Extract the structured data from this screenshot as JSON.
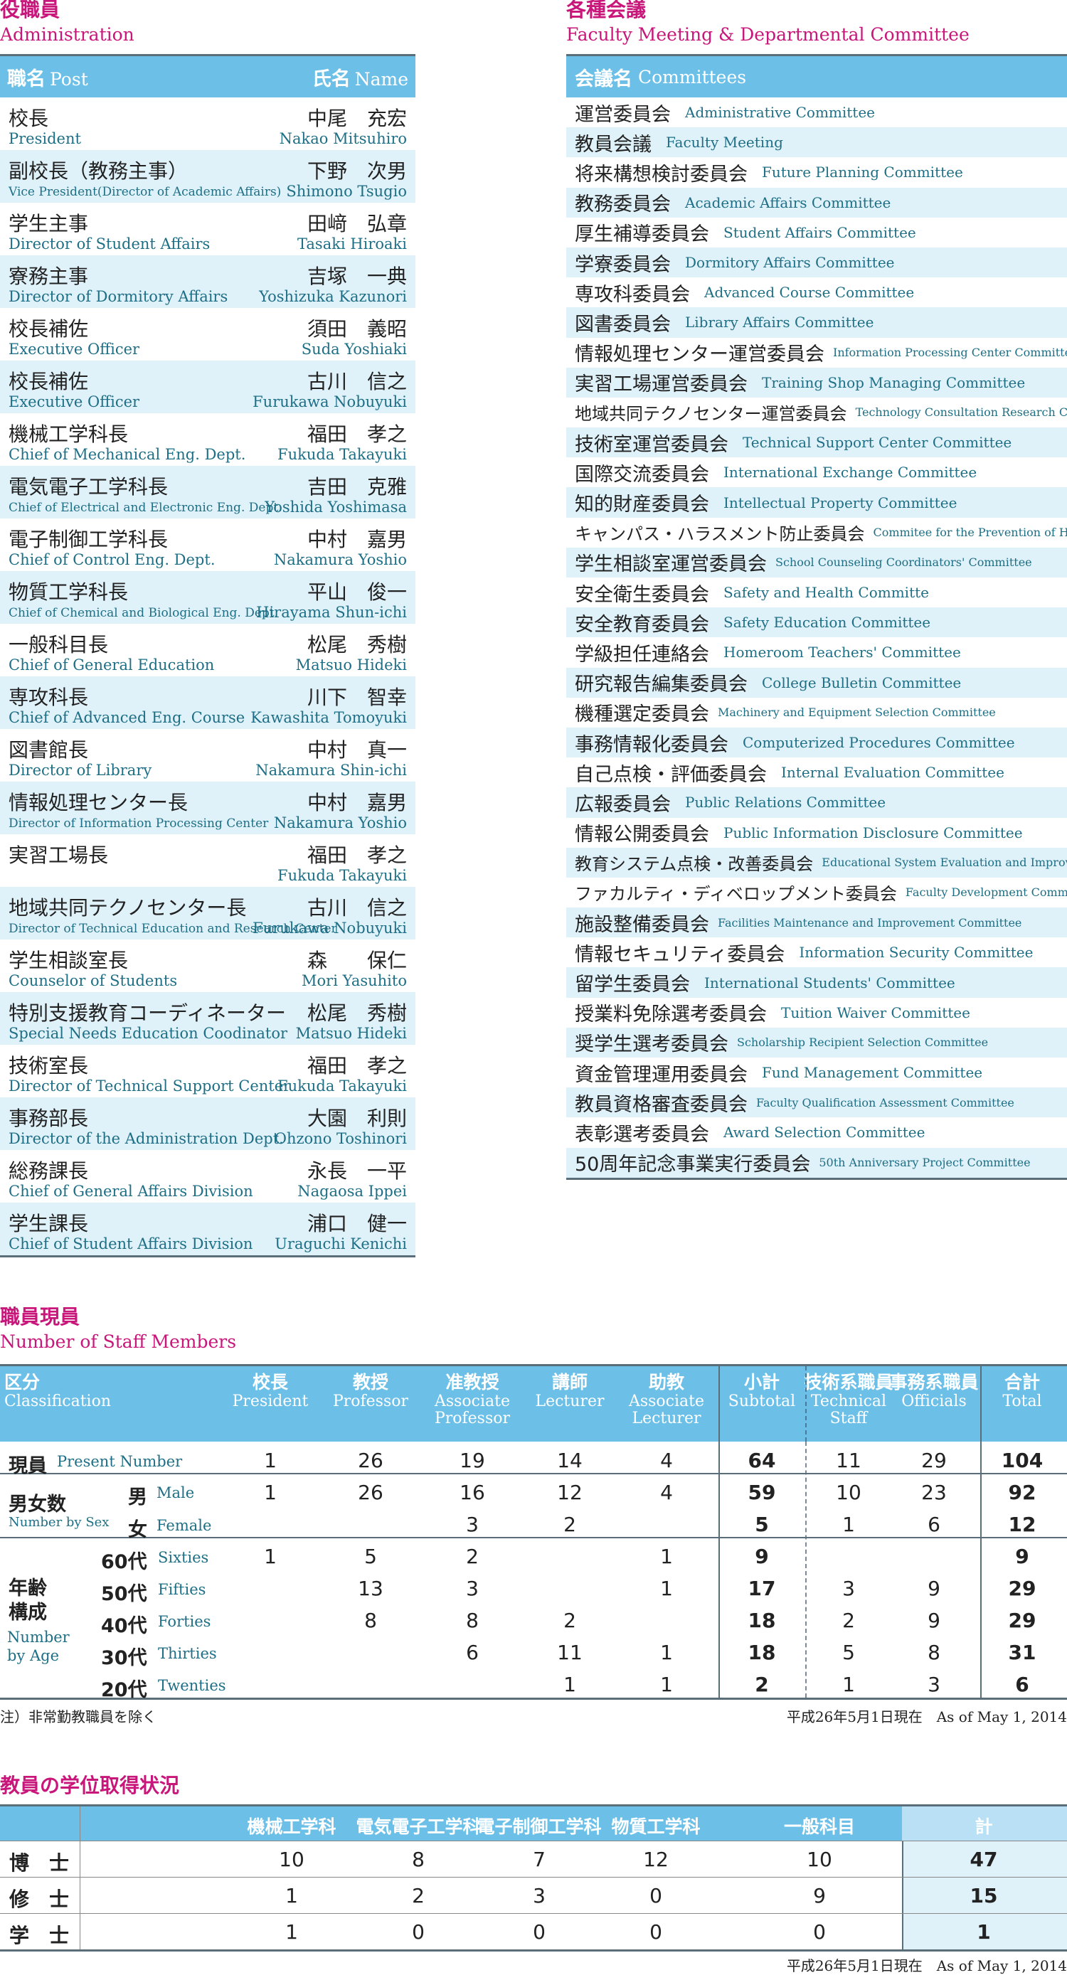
{
  "admin": {
    "title_jp": "役職員",
    "title_en": "Administration",
    "head_post_jp": "職名",
    "head_post_en": "Post",
    "head_name_jp": "氏名",
    "head_name_en": "Name",
    "rows": [
      {
        "post_jp": "校長",
        "post_en": "President",
        "name_jp": "中尾　充宏",
        "name_en": "Nakao Mitsuhiro"
      },
      {
        "post_jp": "副校長（教務主事）",
        "post_en": "Vice President(Director of Academic Affairs)",
        "name_jp": "下野　次男",
        "name_en": "Shimono Tsugio"
      },
      {
        "post_jp": "学生主事",
        "post_en": "Director of Student Affairs",
        "name_jp": "田﨑　弘章",
        "name_en": "Tasaki Hiroaki"
      },
      {
        "post_jp": "寮務主事",
        "post_en": "Director of Dormitory Affairs",
        "name_jp": "吉塚　一典",
        "name_en": "Yoshizuka Kazunori"
      },
      {
        "post_jp": "校長補佐",
        "post_en": "Executive Officer",
        "name_jp": "須田　義昭",
        "name_en": "Suda Yoshiaki"
      },
      {
        "post_jp": "校長補佐",
        "post_en": "Executive Officer",
        "name_jp": "古川　信之",
        "name_en": "Furukawa Nobuyuki"
      },
      {
        "post_jp": "機械工学科長",
        "post_en": "Chief of Mechanical Eng. Dept.",
        "name_jp": "福田　孝之",
        "name_en": "Fukuda Takayuki"
      },
      {
        "post_jp": "電気電子工学科長",
        "post_en": "Chief of Electrical and Electronic Eng. Dept.",
        "name_jp": "吉田　克雅",
        "name_en": "Yoshida Yoshimasa"
      },
      {
        "post_jp": "電子制御工学科長",
        "post_en": "Chief of Control Eng. Dept.",
        "name_jp": "中村　嘉男",
        "name_en": "Nakamura Yoshio"
      },
      {
        "post_jp": "物質工学科長",
        "post_en": "Chief of Chemical and Biological Eng. Dept.",
        "name_jp": "平山　俊一",
        "name_en": "Hirayama Shun-ichi"
      },
      {
        "post_jp": "一般科目長",
        "post_en": "Chief of General Education",
        "name_jp": "松尾　秀樹",
        "name_en": "Matsuo Hideki"
      },
      {
        "post_jp": "専攻科長",
        "post_en": "Chief of Advanced Eng. Course",
        "name_jp": "川下　智幸",
        "name_en": "Kawashita Tomoyuki"
      },
      {
        "post_jp": "図書館長",
        "post_en": "Director of Library",
        "name_jp": "中村　真一",
        "name_en": "Nakamura Shin-ichi"
      },
      {
        "post_jp": "情報処理センター長",
        "post_en": "Director of Information Processing Center",
        "name_jp": "中村　嘉男",
        "name_en": "Nakamura Yoshio"
      },
      {
        "post_jp": "実習工場長",
        "post_en": "",
        "name_jp": "福田　孝之",
        "name_en": "Fukuda Takayuki"
      },
      {
        "post_jp": "地域共同テクノセンター長",
        "post_en": "Director of Technical Education and Research Center",
        "name_jp": "古川　信之",
        "name_en": "Furukawa Nobuyuki"
      },
      {
        "post_jp": "学生相談室長",
        "post_en": "Counselor of Students",
        "name_jp": "森　　保仁",
        "name_en": "Mori Yasuhito"
      },
      {
        "post_jp": "特別支援教育コーディネーター",
        "post_en": "Special Needs Education Coodinator",
        "name_jp": "松尾　秀樹",
        "name_en": "Matsuo Hideki"
      },
      {
        "post_jp": "技術室長",
        "post_en": "Director of Technical Support Center",
        "name_jp": "福田　孝之",
        "name_en": "Fukuda Takayuki"
      },
      {
        "post_jp": "事務部長",
        "post_en": "Director of the Administration Dept.",
        "name_jp": "大園　利則",
        "name_en": "Ohzono Toshinori"
      },
      {
        "post_jp": "総務課長",
        "post_en": "Chief of General Affairs Division",
        "name_jp": "永長　一平",
        "name_en": "Nagaosa Ippei"
      },
      {
        "post_jp": "学生課長",
        "post_en": "Chief of Student Affairs Division",
        "name_jp": "浦口　健一",
        "name_en": "Uraguchi Kenichi"
      }
    ]
  },
  "committees": {
    "title_jp": "各種会議",
    "title_en": "Faculty Meeting & Departmental Committee",
    "head_jp": "会議名",
    "head_en": "Committees",
    "rows": [
      {
        "jp": "運営委員会",
        "en": "Administrative Committee"
      },
      {
        "jp": "教員会議",
        "en": "Faculty Meeting"
      },
      {
        "jp": "将来構想検討委員会",
        "en": "Future Planning Committee"
      },
      {
        "jp": "教務委員会",
        "en": "Academic Affairs Committee"
      },
      {
        "jp": "厚生補導委員会",
        "en": "Student Affairs Committee"
      },
      {
        "jp": "学寮委員会",
        "en": "Dormitory Affairs Committee"
      },
      {
        "jp": "専攻科委員会",
        "en": "Advanced Course Committee"
      },
      {
        "jp": "図書委員会",
        "en": "Library Affairs Committee"
      },
      {
        "jp": "情報処理センター運営委員会",
        "en": "Information Processing Center Committee"
      },
      {
        "jp": "実習工場運営委員会",
        "en": "Training Shop Managing Committee"
      },
      {
        "jp": "地域共同テクノセンター運営委員会",
        "en": "Technology Consultation Research Committee"
      },
      {
        "jp": "技術室運営委員会",
        "en": "Technical Support Center Committee"
      },
      {
        "jp": "国際交流委員会",
        "en": "International Exchange Committee"
      },
      {
        "jp": "知的財産委員会",
        "en": "Intellectual Property Committee"
      },
      {
        "jp": "キャンパス・ハラスメント防止委員会",
        "en": "Commitee for the Prevention of Harassment"
      },
      {
        "jp": "学生相談室運営委員会",
        "en": "School Counseling Coordinators' Committee"
      },
      {
        "jp": "安全衛生委員会",
        "en": "Safety and Health Committe"
      },
      {
        "jp": "安全教育委員会",
        "en": "Safety Education Committee"
      },
      {
        "jp": "学級担任連絡会",
        "en": "Homeroom Teachers' Committee"
      },
      {
        "jp": "研究報告編集委員会",
        "en": "College Bulletin Committee"
      },
      {
        "jp": "機種選定委員会",
        "en": "Machinery and Equipment Selection Committee"
      },
      {
        "jp": "事務情報化委員会",
        "en": "Computerized Procedures Committee"
      },
      {
        "jp": "自己点検・評価委員会",
        "en": "Internal Evaluation Committee"
      },
      {
        "jp": "広報委員会",
        "en": "Public Relations Committee"
      },
      {
        "jp": "情報公開委員会",
        "en": "Public Information Disclosure Committee"
      },
      {
        "jp": "教育システム点検・改善委員会",
        "en": "Educational System Evaluation and Improvement Committee"
      },
      {
        "jp": "ファカルティ・ディベロップメント委員会",
        "en": "Faculty Development Committee"
      },
      {
        "jp": "施設整備委員会",
        "en": "Facilities Maintenance and Improvement Committee"
      },
      {
        "jp": "情報セキュリティ委員会",
        "en": "Information Security Committee"
      },
      {
        "jp": "留学生委員会",
        "en": "International Students' Committee"
      },
      {
        "jp": "授業料免除選考委員会",
        "en": "Tuition Waiver Committee"
      },
      {
        "jp": "奨学生選考委員会",
        "en": "Scholarship Recipient Selection Committee"
      },
      {
        "jp": "資金管理運用委員会",
        "en": "Fund Management Committee"
      },
      {
        "jp": "教員資格審査委員会",
        "en": "Faculty Qualification Assessment Committee"
      },
      {
        "jp": "表彰選考委員会",
        "en": "Award Selection Committee"
      },
      {
        "jp": "50周年記念事業実行委員会",
        "en": "50th Anniversary Project Committee"
      }
    ]
  },
  "staff": {
    "title_jp": "職員現員",
    "title_en": "Number of Staff Members",
    "head_class_jp": "区分",
    "head_class_en": "Classification",
    "columns": [
      {
        "jp": "校長",
        "en": "President"
      },
      {
        "jp": "教授",
        "en": "Professor"
      },
      {
        "jp": "准教授",
        "en": "Associate Professor"
      },
      {
        "jp": "講師",
        "en": "Lecturer"
      },
      {
        "jp": "助教",
        "en": "Associate Lecturer"
      },
      {
        "jp": "小計",
        "en": "Subtotal"
      },
      {
        "jp": "技術系職員",
        "en": "Technical Staff"
      },
      {
        "jp": "事務系職員",
        "en": "Officials"
      },
      {
        "jp": "合計",
        "en": "Total"
      }
    ],
    "present_jp": "現員",
    "present_en": "Present Number",
    "sex_jp": "男女数",
    "sex_en": "Number by Sex",
    "male_jp": "男",
    "male_en": "Male",
    "female_jp": "女",
    "female_en": "Female",
    "age_jp": "年齢構成",
    "age_en": "Number by Age",
    "ages": [
      {
        "jp": "60代",
        "en": "Sixties"
      },
      {
        "jp": "50代",
        "en": "Fifties"
      },
      {
        "jp": "40代",
        "en": "Forties"
      },
      {
        "jp": "30代",
        "en": "Thirties"
      },
      {
        "jp": "20代",
        "en": "Twenties"
      }
    ],
    "values": [
      [
        "1",
        "26",
        "19",
        "14",
        "4",
        "64",
        "11",
        "29",
        "104"
      ],
      [
        "1",
        "26",
        "16",
        "12",
        "4",
        "59",
        "10",
        "23",
        "92"
      ],
      [
        "",
        "",
        "3",
        "2",
        "",
        "5",
        "1",
        "6",
        "12"
      ],
      [
        "1",
        "5",
        "2",
        "",
        "1",
        "9",
        "",
        "",
        "9"
      ],
      [
        "",
        "13",
        "3",
        "",
        "1",
        "17",
        "3",
        "9",
        "29"
      ],
      [
        "",
        "8",
        "8",
        "2",
        "",
        "18",
        "2",
        "9",
        "29"
      ],
      [
        "",
        "",
        "6",
        "11",
        "1",
        "18",
        "5",
        "8",
        "31"
      ],
      [
        "",
        "",
        "",
        "1",
        "1",
        "2",
        "1",
        "3",
        "6"
      ]
    ],
    "note": "注）非常勤教職員を除く",
    "date": "平成26年5月1日現在　As of May 1, 2014"
  },
  "degrees": {
    "title_jp": "教員の学位取得状況",
    "columns": [
      "機械工学科",
      "電気電子工学科",
      "電子制御工学科",
      "物質工学科",
      "一般科目",
      "計"
    ],
    "rows": [
      {
        "label": "博　士",
        "values": [
          "10",
          "8",
          "7",
          "12",
          "10",
          "47"
        ]
      },
      {
        "label": "修　士",
        "values": [
          "1",
          "2",
          "3",
          "0",
          "9",
          "15"
        ]
      },
      {
        "label": "学　士",
        "values": [
          "1",
          "0",
          "0",
          "0",
          "0",
          "1"
        ]
      }
    ],
    "date": "平成26年5月1日現在　As of May 1, 2014"
  },
  "colors": {
    "accent": "#c8167a",
    "header": "#6cc0e8",
    "stripe": "#dff1f9",
    "text_en": "#1e6f86"
  }
}
